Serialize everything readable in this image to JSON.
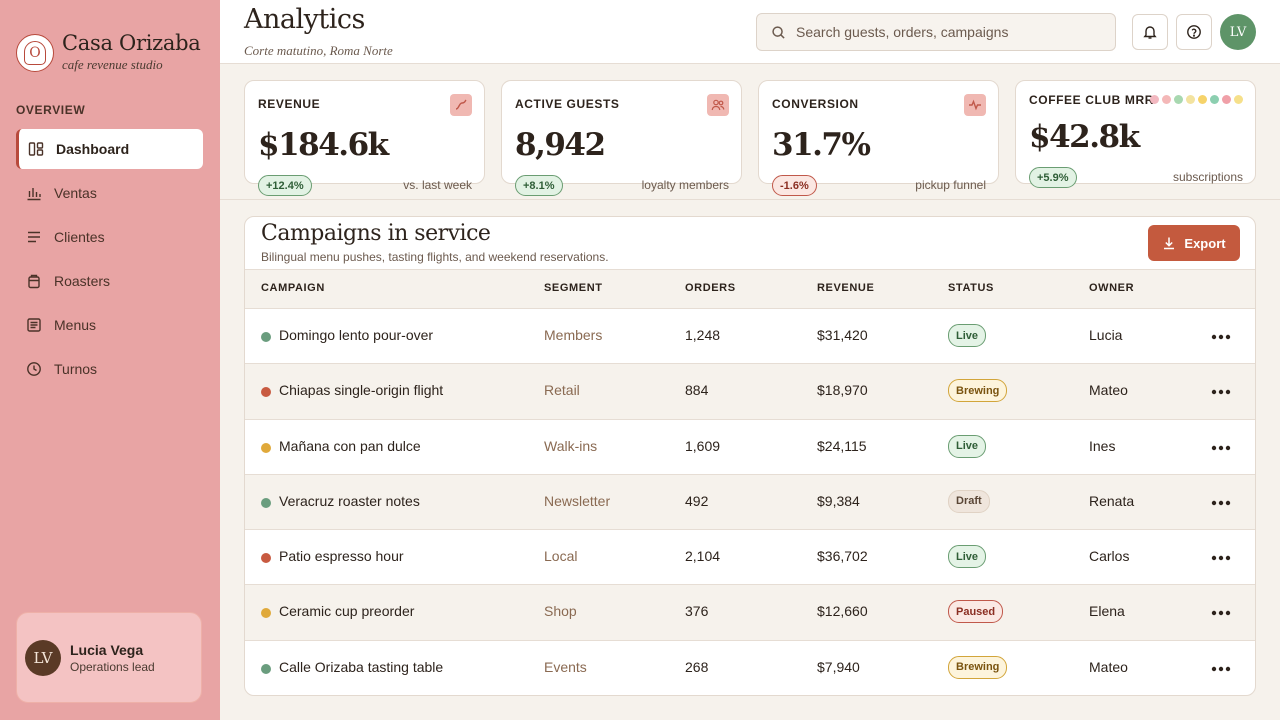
{
  "brand": {
    "mark": "O",
    "name": "Casa Orizaba",
    "tagline": "cafe revenue studio"
  },
  "sidebar": {
    "section_label": "OVERVIEW",
    "items": [
      {
        "label": "Dashboard",
        "icon": "dashboard-icon",
        "active": true
      },
      {
        "label": "Ventas",
        "icon": "bar-chart-icon"
      },
      {
        "label": "Clientes",
        "icon": "list-icon"
      },
      {
        "label": "Roasters",
        "icon": "bag-icon"
      },
      {
        "label": "Menus",
        "icon": "menu-card-icon"
      },
      {
        "label": "Turnos",
        "icon": "clock-icon"
      }
    ],
    "user": {
      "initials": "LV",
      "name": "Lucia Vega",
      "role": "Operations lead"
    }
  },
  "header": {
    "title": "Analytics",
    "subtitle": "Corte matutino, Roma Norte",
    "search_placeholder": "Search guests, orders, campaigns",
    "avatar_initials": "LV"
  },
  "kpis": [
    {
      "label": "REVENUE",
      "value": "$184.6k",
      "delta": "+12.4%",
      "trend": "up",
      "note": "vs. last week",
      "icon": "trend-line-icon"
    },
    {
      "label": "ACTIVE GUESTS",
      "value": "8,942",
      "delta": "+8.1%",
      "trend": "up",
      "note": "loyalty members",
      "icon": "users-icon"
    },
    {
      "label": "CONVERSION",
      "value": "31.7%",
      "delta": "-1.6%",
      "trend": "down",
      "note": "pickup funnel",
      "icon": "pulse-icon"
    },
    {
      "label": "COFFEE CLUB MRR",
      "value": "$42.8k",
      "delta": "+5.9%",
      "trend": "up",
      "note": "subscriptions"
    }
  ],
  "mrr_dot_colors": [
    "#f2b8c0",
    "#f4b8b8",
    "#a8d8b0",
    "#f3e3a0",
    "#f6d36a",
    "#8ccfb0",
    "#f0a0a8",
    "#f6e08a"
  ],
  "campaigns": {
    "title": "Campaigns in service",
    "subtitle": "Bilingual menu pushes, tasting flights, and weekend reservations.",
    "export_label": "Export",
    "columns": [
      "CAMPAIGN",
      "SEGMENT",
      "ORDERS",
      "REVENUE",
      "STATUS",
      "OWNER"
    ],
    "rows": [
      {
        "name": "Domingo lento pour-over",
        "segment": "Members",
        "orders": "1,248",
        "revenue": "$31,420",
        "status": "Live",
        "owner": "Lucia",
        "dot": "#6a9d7e"
      },
      {
        "name": "Chiapas single-origin flight",
        "segment": "Retail",
        "orders": "884",
        "revenue": "$18,970",
        "status": "Brewing",
        "owner": "Mateo",
        "dot": "#c85a40"
      },
      {
        "name": "Mañana con pan dulce",
        "segment": "Walk-ins",
        "orders": "1,609",
        "revenue": "$24,115",
        "status": "Live",
        "owner": "Ines",
        "dot": "#e0a93a"
      },
      {
        "name": "Veracruz roaster notes",
        "segment": "Newsletter",
        "orders": "492",
        "revenue": "$9,384",
        "status": "Draft",
        "owner": "Renata",
        "dot": "#6a9d7e"
      },
      {
        "name": "Patio espresso hour",
        "segment": "Local",
        "orders": "2,104",
        "revenue": "$36,702",
        "status": "Live",
        "owner": "Carlos",
        "dot": "#c85a40"
      },
      {
        "name": "Ceramic cup preorder",
        "segment": "Shop",
        "orders": "376",
        "revenue": "$12,660",
        "status": "Paused",
        "owner": "Elena",
        "dot": "#e0a93a"
      },
      {
        "name": "Calle Orizaba tasting table",
        "segment": "Events",
        "orders": "268",
        "revenue": "$7,940",
        "status": "Brewing",
        "owner": "Mateo",
        "dot": "#6a9d7e"
      }
    ]
  },
  "colors": {
    "sidebar_bg": "#e8a4a4",
    "accent": "#c45a3e",
    "avatar_green": "#5e9468",
    "status_live": "#2f5e37",
    "status_brewing": "#7a5410",
    "status_paused": "#8b2e22"
  }
}
